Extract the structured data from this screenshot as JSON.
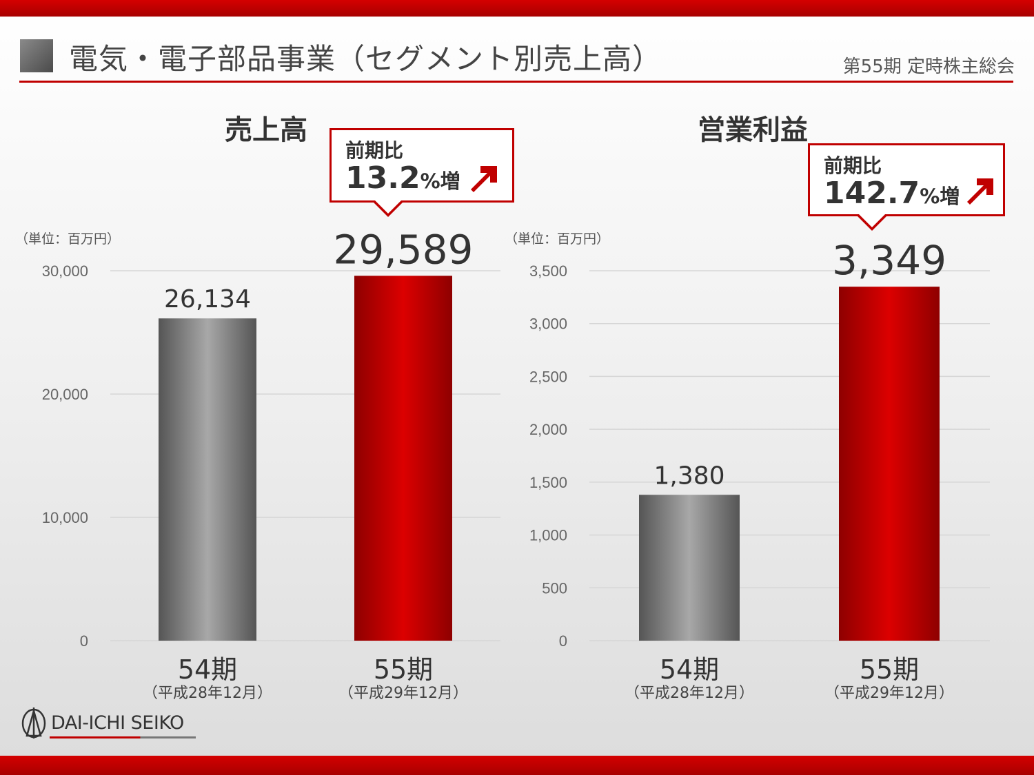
{
  "header": {
    "title": "電気・電子部品事業（セグメント別売上高）",
    "meeting": "第55期 定時株主総会"
  },
  "logo": {
    "name": "DAI-ICHI SEIKO"
  },
  "colors": {
    "accent": "#c00000",
    "prior_bar": "#777777",
    "current_bar": "#d40000"
  },
  "chart_data": [
    {
      "type": "bar",
      "title": "売上高",
      "unit_label": "（単位：百万円）",
      "categories": [
        "54期",
        "55期"
      ],
      "category_sublabels": [
        "（平成28年12月）",
        "（平成29年12月）"
      ],
      "values": [
        26134,
        29589
      ],
      "value_labels": [
        "26,134",
        "29,589"
      ],
      "ylim": [
        0,
        30000
      ],
      "yticks": [
        0,
        10000,
        20000,
        30000
      ],
      "ytick_labels": [
        "0",
        "10,000",
        "20,000",
        "30,000"
      ],
      "grid": true,
      "callout": {
        "caption": "前期比",
        "value": "13.2",
        "suffix": "%増"
      }
    },
    {
      "type": "bar",
      "title": "営業利益",
      "unit_label": "（単位：百万円）",
      "categories": [
        "54期",
        "55期"
      ],
      "category_sublabels": [
        "（平成28年12月）",
        "（平成29年12月）"
      ],
      "values": [
        1380,
        3349
      ],
      "value_labels": [
        "1,380",
        "3,349"
      ],
      "ylim": [
        0,
        3500
      ],
      "yticks": [
        0,
        500,
        1000,
        1500,
        2000,
        2500,
        3000,
        3500
      ],
      "ytick_labels": [
        "0",
        "500",
        "1,000",
        "1,500",
        "2,000",
        "2,500",
        "3,000",
        "3,500"
      ],
      "grid": true,
      "callout": {
        "caption": "前期比",
        "value": "142.7",
        "suffix": "%増"
      }
    }
  ]
}
